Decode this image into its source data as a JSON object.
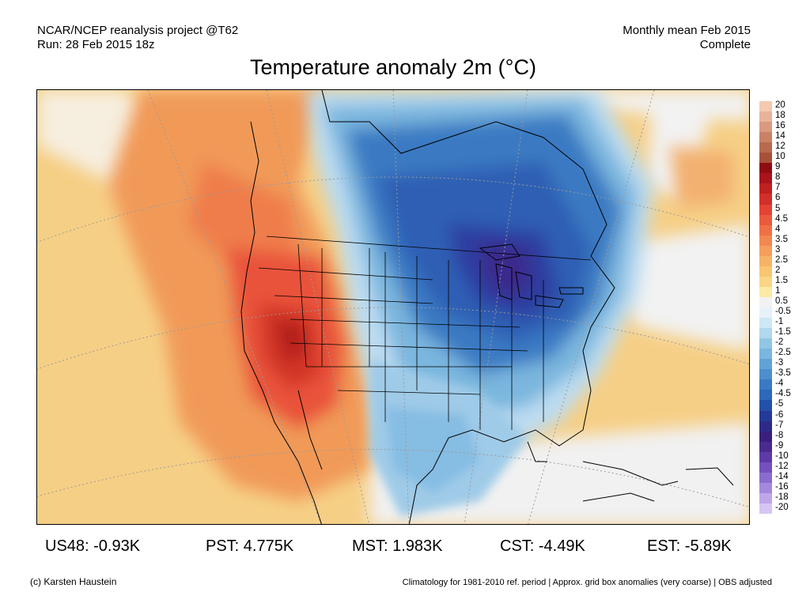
{
  "header": {
    "source_line": "NCAR/NCEP reanalysis project @T62",
    "run_line": "Run: 28 Feb 2015 18z",
    "period_line": "Monthly mean Feb 2015",
    "status_line": "Complete"
  },
  "title": "Temperature anomaly 2m (°C)",
  "map": {
    "region": "North America",
    "background_color": "#f5ebc8"
  },
  "colorbar": {
    "labels": [
      "20",
      "18",
      "16",
      "14",
      "12",
      "10",
      "9",
      "8",
      "7",
      "6",
      "5",
      "4.5",
      "4",
      "3.5",
      "3",
      "2.5",
      "2",
      "1.5",
      "1",
      "0.5",
      "-0.5",
      "-1",
      "-1.5",
      "-2",
      "-2.5",
      "-3",
      "-3.5",
      "-4",
      "-4.5",
      "-5",
      "-6",
      "-7",
      "-8",
      "-9",
      "-10",
      "-12",
      "-14",
      "-16",
      "-18",
      "-20"
    ],
    "colors": [
      "#f4c9b2",
      "#e8b39a",
      "#d99a7f",
      "#c98265",
      "#b86a4e",
      "#a8513a",
      "#8f0d10",
      "#a8141a",
      "#c0201f",
      "#d32f2a",
      "#e34234",
      "#ea5a3d",
      "#ef7047",
      "#f28752",
      "#f59e5c",
      "#f6b267",
      "#f8c572",
      "#f9d585",
      "#faeaa6",
      "#f2f2f2",
      "#e6f1fa",
      "#cde7f5",
      "#b0d8ee",
      "#92c6e5",
      "#7ab6de",
      "#62a3d6",
      "#4c8fcc",
      "#3a7ac3",
      "#2d68ba",
      "#2350ab",
      "#233a98",
      "#2e2a87",
      "#3a1f7c",
      "#4b2a8e",
      "#5e3aa6",
      "#7350bc",
      "#8a6cce",
      "#a488dc",
      "#bea6e8",
      "#d6c5f2"
    ]
  },
  "stats": [
    {
      "label": "US48: -0.93K"
    },
    {
      "label": "PST: 4.775K"
    },
    {
      "label": "MST: 1.983K"
    },
    {
      "label": "CST: -4.49K"
    },
    {
      "label": "EST: -5.89K"
    }
  ],
  "footer": {
    "copyright": "(c) Karsten Haustein",
    "note": "Climatology for 1981-2010 ref. period | Approx. grid box anomalies (very coarse) | OBS adjusted"
  }
}
